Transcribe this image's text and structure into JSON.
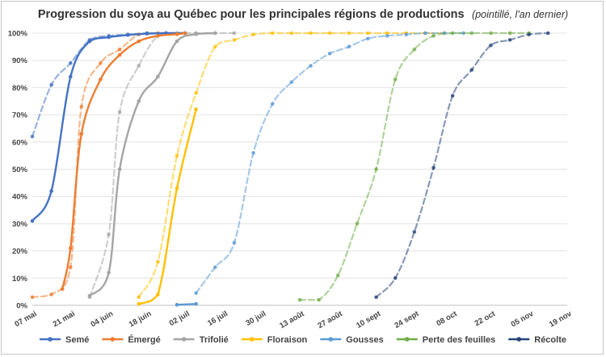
{
  "chart_data": {
    "type": "line",
    "title": "Progression du soya au Québec pour les principales régions de productions",
    "subtitle": "(pointillé, l'an dernier)",
    "ylim": [
      0,
      100
    ],
    "y_ticks": [
      "0%",
      "10%",
      "20%",
      "30%",
      "40%",
      "50%",
      "60%",
      "70%",
      "80%",
      "90%",
      "100%"
    ],
    "x_tick_dates": [
      "2024-05-07",
      "2024-05-21",
      "2024-06-04",
      "2024-06-18",
      "2024-07-02",
      "2024-07-16",
      "2024-07-30",
      "2024-08-13",
      "2024-08-27",
      "2024-09-10",
      "2024-09-24",
      "2024-10-08",
      "2024-10-22",
      "2024-11-05",
      "2024-11-19"
    ],
    "x_tick_labels": [
      "07 mai",
      "21 mai",
      "04 juin",
      "18 juin",
      "02 juil",
      "16 juil",
      "30 juil",
      "13 août",
      "27 août",
      "10 sept",
      "24 sept",
      "08 oct",
      "22 oct",
      "05 nov",
      "19 nov"
    ],
    "xlim": [
      "2024-05-07",
      "2024-11-19"
    ],
    "grid": true,
    "legend_position": "bottom",
    "series": [
      {
        "name": "Semé",
        "color": "#4472c4",
        "year": "current",
        "points": [
          [
            "2024-05-07",
            31
          ],
          [
            "2024-05-14",
            42
          ],
          [
            "2024-05-21",
            84
          ],
          [
            "2024-05-28",
            97
          ],
          [
            "2024-06-04",
            98.5
          ],
          [
            "2024-06-11",
            99.3
          ],
          [
            "2024-06-18",
            99.8
          ],
          [
            "2024-06-25",
            100
          ],
          [
            "2024-07-02",
            100
          ]
        ]
      },
      {
        "name": "Semé",
        "color": "#4472c4",
        "year": "previous",
        "points": [
          [
            "2024-05-07",
            62
          ],
          [
            "2024-05-14",
            81
          ],
          [
            "2024-05-21",
            89
          ],
          [
            "2024-05-28",
            97.5
          ],
          [
            "2024-06-04",
            99
          ],
          [
            "2024-06-11",
            99.5
          ],
          [
            "2024-06-18",
            100
          ],
          [
            "2024-06-25",
            100
          ],
          [
            "2024-07-02",
            100
          ]
        ]
      },
      {
        "name": "Émergé",
        "color": "#ed7d31",
        "year": "current",
        "points": [
          [
            "2024-05-18",
            6
          ],
          [
            "2024-05-21",
            21
          ],
          [
            "2024-05-25",
            63
          ],
          [
            "2024-06-01",
            83
          ],
          [
            "2024-06-08",
            92
          ],
          [
            "2024-06-15",
            97
          ],
          [
            "2024-06-22",
            99
          ],
          [
            "2024-06-29",
            99.6
          ],
          [
            "2024-07-02",
            100
          ]
        ]
      },
      {
        "name": "Émergé",
        "color": "#ed7d31",
        "year": "previous",
        "points": [
          [
            "2024-05-07",
            3
          ],
          [
            "2024-05-14",
            4
          ],
          [
            "2024-05-21",
            14
          ],
          [
            "2024-05-25",
            73
          ],
          [
            "2024-06-01",
            89
          ],
          [
            "2024-06-08",
            94
          ],
          [
            "2024-06-15",
            99.5
          ],
          [
            "2024-06-22",
            100
          ]
        ]
      },
      {
        "name": "Trifolié",
        "color": "#a5a5a5",
        "year": "current",
        "points": [
          [
            "2024-05-28",
            3.5
          ],
          [
            "2024-06-04",
            12
          ],
          [
            "2024-06-08",
            50
          ],
          [
            "2024-06-15",
            75
          ],
          [
            "2024-06-22",
            84
          ],
          [
            "2024-06-29",
            97
          ],
          [
            "2024-07-06",
            99.6
          ],
          [
            "2024-07-13",
            100
          ]
        ]
      },
      {
        "name": "Trifolié",
        "color": "#a5a5a5",
        "year": "previous",
        "points": [
          [
            "2024-05-28",
            3
          ],
          [
            "2024-06-04",
            26
          ],
          [
            "2024-06-08",
            71
          ],
          [
            "2024-06-15",
            88
          ],
          [
            "2024-06-22",
            99
          ],
          [
            "2024-06-29",
            100
          ],
          [
            "2024-07-06",
            100
          ],
          [
            "2024-07-13",
            100
          ],
          [
            "2024-07-20",
            100
          ]
        ]
      },
      {
        "name": "Floraison",
        "color": "#ffc000",
        "year": "current",
        "points": [
          [
            "2024-06-15",
            0.5
          ],
          [
            "2024-06-22",
            4
          ],
          [
            "2024-06-29",
            43
          ],
          [
            "2024-07-06",
            72
          ]
        ]
      },
      {
        "name": "Floraison",
        "color": "#ffc000",
        "year": "previous",
        "points": [
          [
            "2024-06-15",
            3
          ],
          [
            "2024-06-22",
            16
          ],
          [
            "2024-06-29",
            55
          ],
          [
            "2024-07-06",
            78
          ],
          [
            "2024-07-13",
            95
          ],
          [
            "2024-07-20",
            97.5
          ],
          [
            "2024-07-27",
            99.5
          ],
          [
            "2024-08-03",
            100
          ],
          [
            "2024-08-10",
            100
          ],
          [
            "2024-08-17",
            100
          ],
          [
            "2024-08-24",
            100
          ],
          [
            "2024-08-31",
            100
          ],
          [
            "2024-09-07",
            100
          ],
          [
            "2024-09-14",
            100
          ],
          [
            "2024-09-21",
            100
          ],
          [
            "2024-09-28",
            100
          ],
          [
            "2024-10-05",
            100
          ]
        ]
      },
      {
        "name": "Gousses",
        "color": "#5b9bd5",
        "year": "current",
        "points": [
          [
            "2024-06-29",
            0.2
          ],
          [
            "2024-07-06",
            0.5
          ]
        ]
      },
      {
        "name": "Gousses",
        "color": "#5b9bd5",
        "year": "previous",
        "points": [
          [
            "2024-07-06",
            4.5
          ],
          [
            "2024-07-13",
            14
          ],
          [
            "2024-07-20",
            23
          ],
          [
            "2024-07-27",
            56
          ],
          [
            "2024-08-03",
            74
          ],
          [
            "2024-08-10",
            82
          ],
          [
            "2024-08-17",
            88
          ],
          [
            "2024-08-24",
            92.5
          ],
          [
            "2024-08-31",
            95
          ],
          [
            "2024-09-07",
            98
          ],
          [
            "2024-09-14",
            99
          ],
          [
            "2024-09-21",
            99.5
          ],
          [
            "2024-09-28",
            100
          ],
          [
            "2024-10-05",
            100
          ],
          [
            "2024-10-12",
            100
          ]
        ]
      },
      {
        "name": "Perte des feuilles",
        "color": "#70ad47",
        "year": "previous",
        "points": [
          [
            "2024-08-13",
            2
          ],
          [
            "2024-08-20",
            2
          ],
          [
            "2024-08-27",
            11
          ],
          [
            "2024-09-03",
            30
          ],
          [
            "2024-09-10",
            50
          ],
          [
            "2024-09-17",
            83
          ],
          [
            "2024-09-24",
            94
          ],
          [
            "2024-10-01",
            99
          ],
          [
            "2024-10-08",
            100
          ],
          [
            "2024-10-15",
            100
          ],
          [
            "2024-10-22",
            100
          ],
          [
            "2024-10-29",
            100
          ],
          [
            "2024-11-05",
            100
          ]
        ]
      },
      {
        "name": "Récolte",
        "color": "#264478",
        "year": "previous",
        "points": [
          [
            "2024-09-10",
            3
          ],
          [
            "2024-09-17",
            10
          ],
          [
            "2024-09-24",
            27
          ],
          [
            "2024-10-01",
            50.5
          ],
          [
            "2024-10-08",
            77
          ],
          [
            "2024-10-15",
            86.5
          ],
          [
            "2024-10-22",
            95.5
          ],
          [
            "2024-10-29",
            97.5
          ],
          [
            "2024-11-05",
            99.5
          ],
          [
            "2024-11-12",
            100
          ]
        ]
      }
    ],
    "legend": [
      {
        "name": "Semé",
        "color": "#4472c4"
      },
      {
        "name": "Émergé",
        "color": "#ed7d31"
      },
      {
        "name": "Trifolié",
        "color": "#a5a5a5"
      },
      {
        "name": "Floraison",
        "color": "#ffc000"
      },
      {
        "name": "Gousses",
        "color": "#5b9bd5"
      },
      {
        "name": "Perte des feuilles",
        "color": "#70ad47"
      },
      {
        "name": "Récolte",
        "color": "#264478"
      }
    ]
  }
}
